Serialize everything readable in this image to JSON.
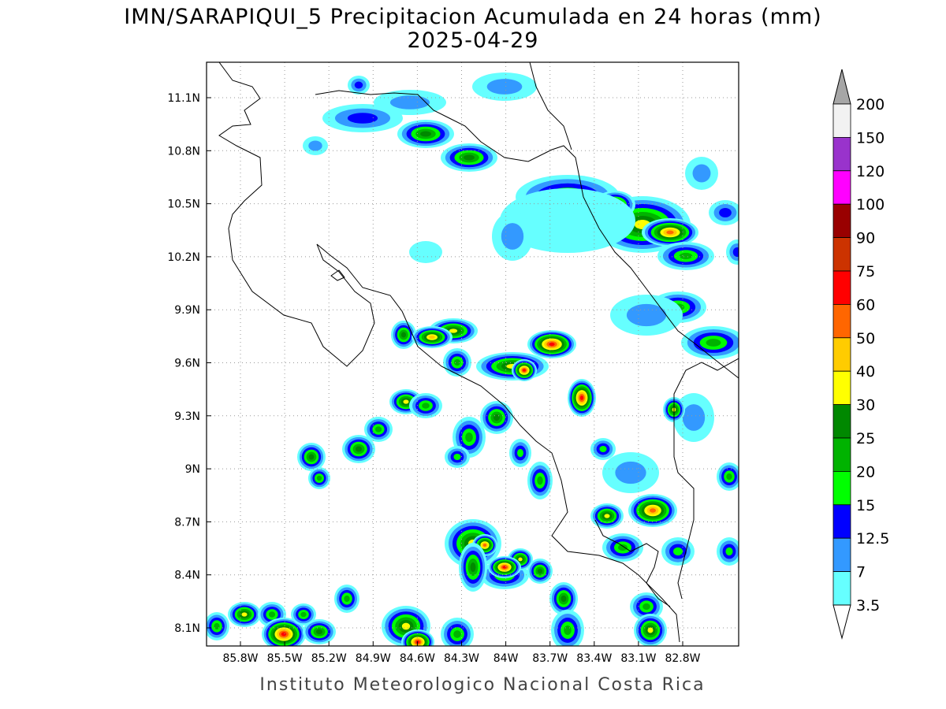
{
  "header": {
    "title": "IMN/SARAPIQUI_5 Precipitacion Acumulada en 24 horas (mm)",
    "date": "2025-04-29"
  },
  "map": {
    "lat_labels": [
      "11.1N",
      "10.8N",
      "10.5N",
      "10.2N",
      "9.9N",
      "9.6N",
      "9.3N",
      "9N",
      "8.7N",
      "8.4N",
      "8.1N"
    ],
    "lon_labels": [
      "85.8W",
      "85.5W",
      "85.2W",
      "84.9W",
      "84.6W",
      "84.3W",
      "84W",
      "83.7W",
      "83.4W",
      "83.1W",
      "82.8W"
    ],
    "grid": true
  },
  "colorbar": {
    "labels": [
      "200",
      "150",
      "120",
      "100",
      "90",
      "75",
      "60",
      "50",
      "40",
      "30",
      "25",
      "20",
      "15",
      "12.5",
      "7",
      "3.5"
    ],
    "colors": [
      "#f2f2f2",
      "#9933cc",
      "#ff00ff",
      "#990000",
      "#cc3300",
      "#ff0000",
      "#ff6600",
      "#ffcc00",
      "#ffff00",
      "#008800",
      "#00b300",
      "#00ff00",
      "#0000ff",
      "#3399ff",
      "#66ffff"
    ],
    "over_color": "#a6a6a6",
    "under_color": "#ffffff"
  },
  "footer": "Instituto Meteorologico Nacional Costa Rica"
}
